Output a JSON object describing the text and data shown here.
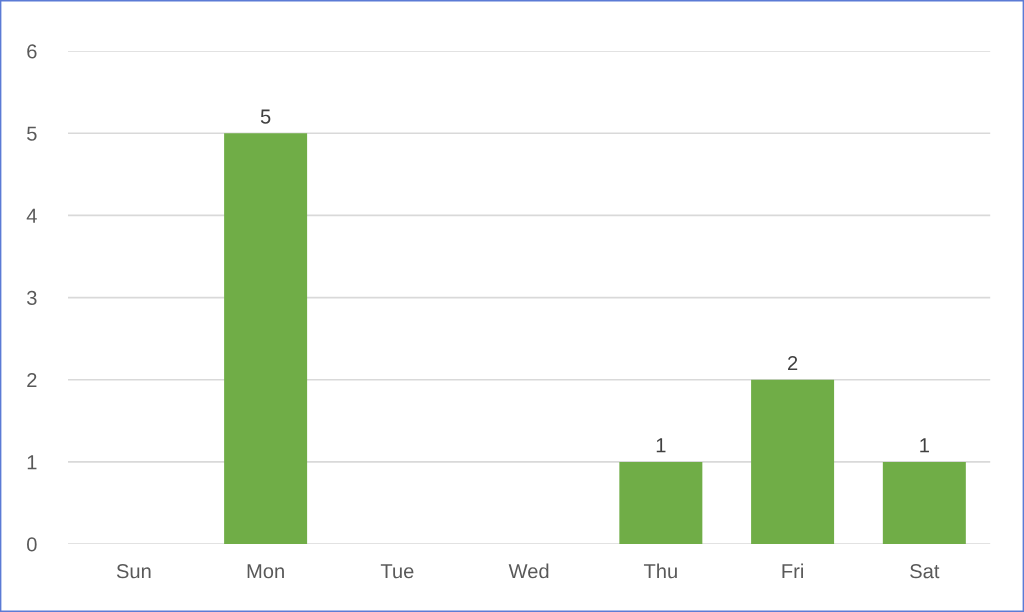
{
  "chart_data": {
    "type": "bar",
    "categories": [
      "Sun",
      "Mon",
      "Tue",
      "Wed",
      "Thu",
      "Fri",
      "Sat"
    ],
    "values": [
      0,
      5,
      0,
      0,
      1,
      2,
      1
    ],
    "color": "#70ad47",
    "value_labels": [
      null,
      "5",
      null,
      null,
      "1",
      "2",
      "1"
    ],
    "ylim": [
      0,
      6
    ],
    "yticks": [
      0,
      1,
      2,
      3,
      4,
      5,
      6
    ],
    "grid": "y",
    "legend": false
  }
}
